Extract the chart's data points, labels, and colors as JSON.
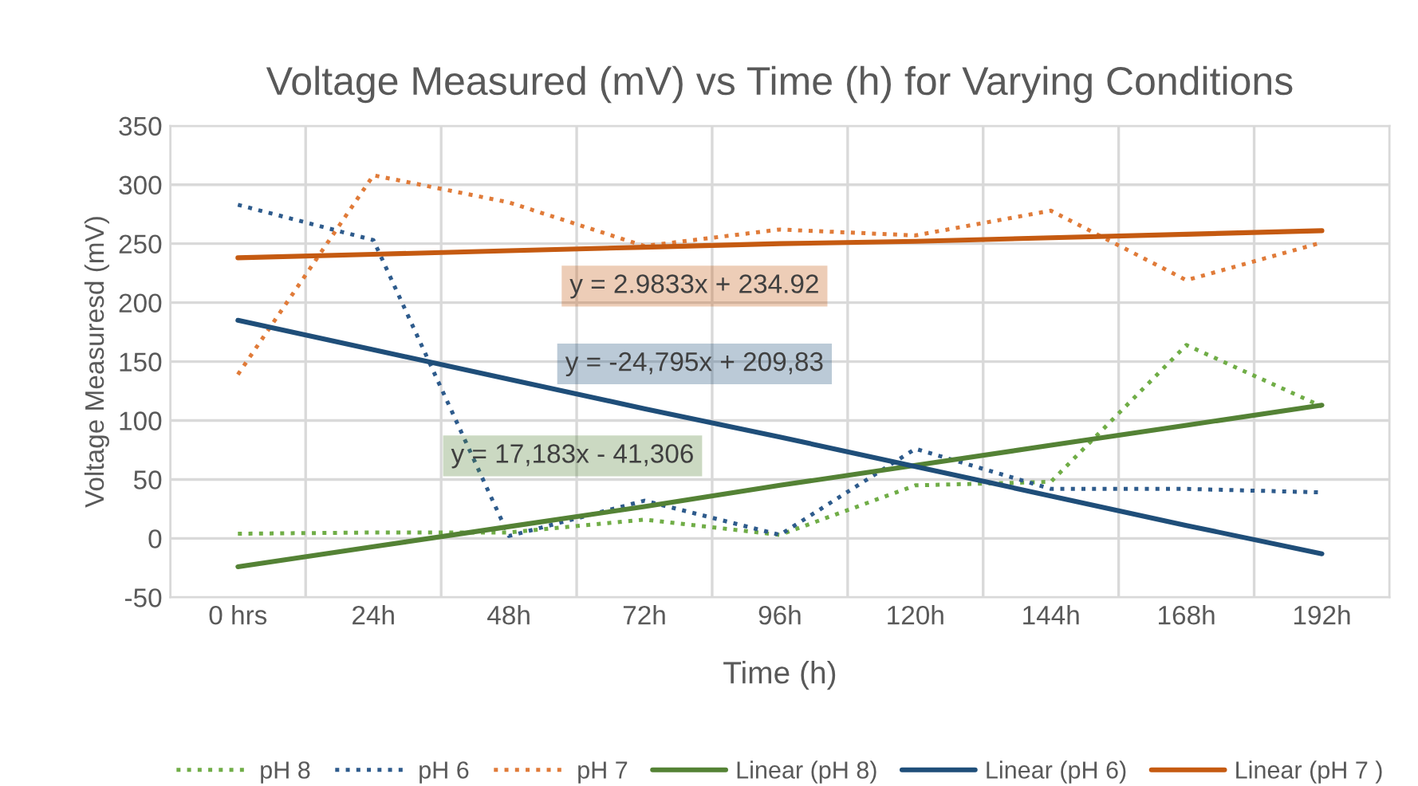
{
  "chart_data": {
    "type": "line",
    "title": "Voltage Measured (mV) vs Time (h) for Varying Conditions",
    "xlabel": "Time (h)",
    "ylabel": "Voltage Measuresd (mV)",
    "categories": [
      "0 hrs",
      "24h",
      "48h",
      "72h",
      "96h",
      "120h",
      "144h",
      "168h",
      "192h"
    ],
    "series": [
      {
        "name": "pH 8",
        "color": "#70ad47",
        "line_style": "dotted",
        "values": [
          4,
          5,
          5,
          16,
          3,
          45,
          48,
          164,
          112
        ]
      },
      {
        "name": "pH 6",
        "color": "#2e5b8c",
        "line_style": "dotted",
        "values": [
          283,
          253,
          2,
          32,
          3,
          76,
          42,
          42,
          39
        ]
      },
      {
        "name": "pH 7",
        "color": "#e07b39",
        "line_style": "dotted",
        "values": [
          139,
          308,
          285,
          248,
          262,
          257,
          278,
          219,
          251
        ]
      },
      {
        "name": "Linear (pH 8)",
        "color": "#548235",
        "line_style": "solid",
        "values": [
          -24,
          -7,
          10,
          27,
          45,
          62,
          79,
          96,
          113
        ]
      },
      {
        "name": "Linear (pH 6)",
        "color": "#1f4e79",
        "line_style": "solid",
        "values": [
          185,
          160,
          135,
          110,
          86,
          61,
          36,
          11,
          -13
        ]
      },
      {
        "name": "Linear (pH 7 )",
        "color": "#c55a11",
        "line_style": "solid",
        "values": [
          238,
          241,
          244,
          247,
          250,
          252,
          255,
          258,
          261
        ]
      }
    ],
    "annotations": [
      "y = 2.9833x + 234.92",
      "y = -24,795x + 209,83",
      "y = 17,183x - 41,306"
    ],
    "ylim": [
      -50,
      350
    ],
    "yticks": [
      -50,
      0,
      50,
      100,
      150,
      200,
      250,
      300,
      350
    ],
    "grid": true,
    "legend": "bottom"
  }
}
